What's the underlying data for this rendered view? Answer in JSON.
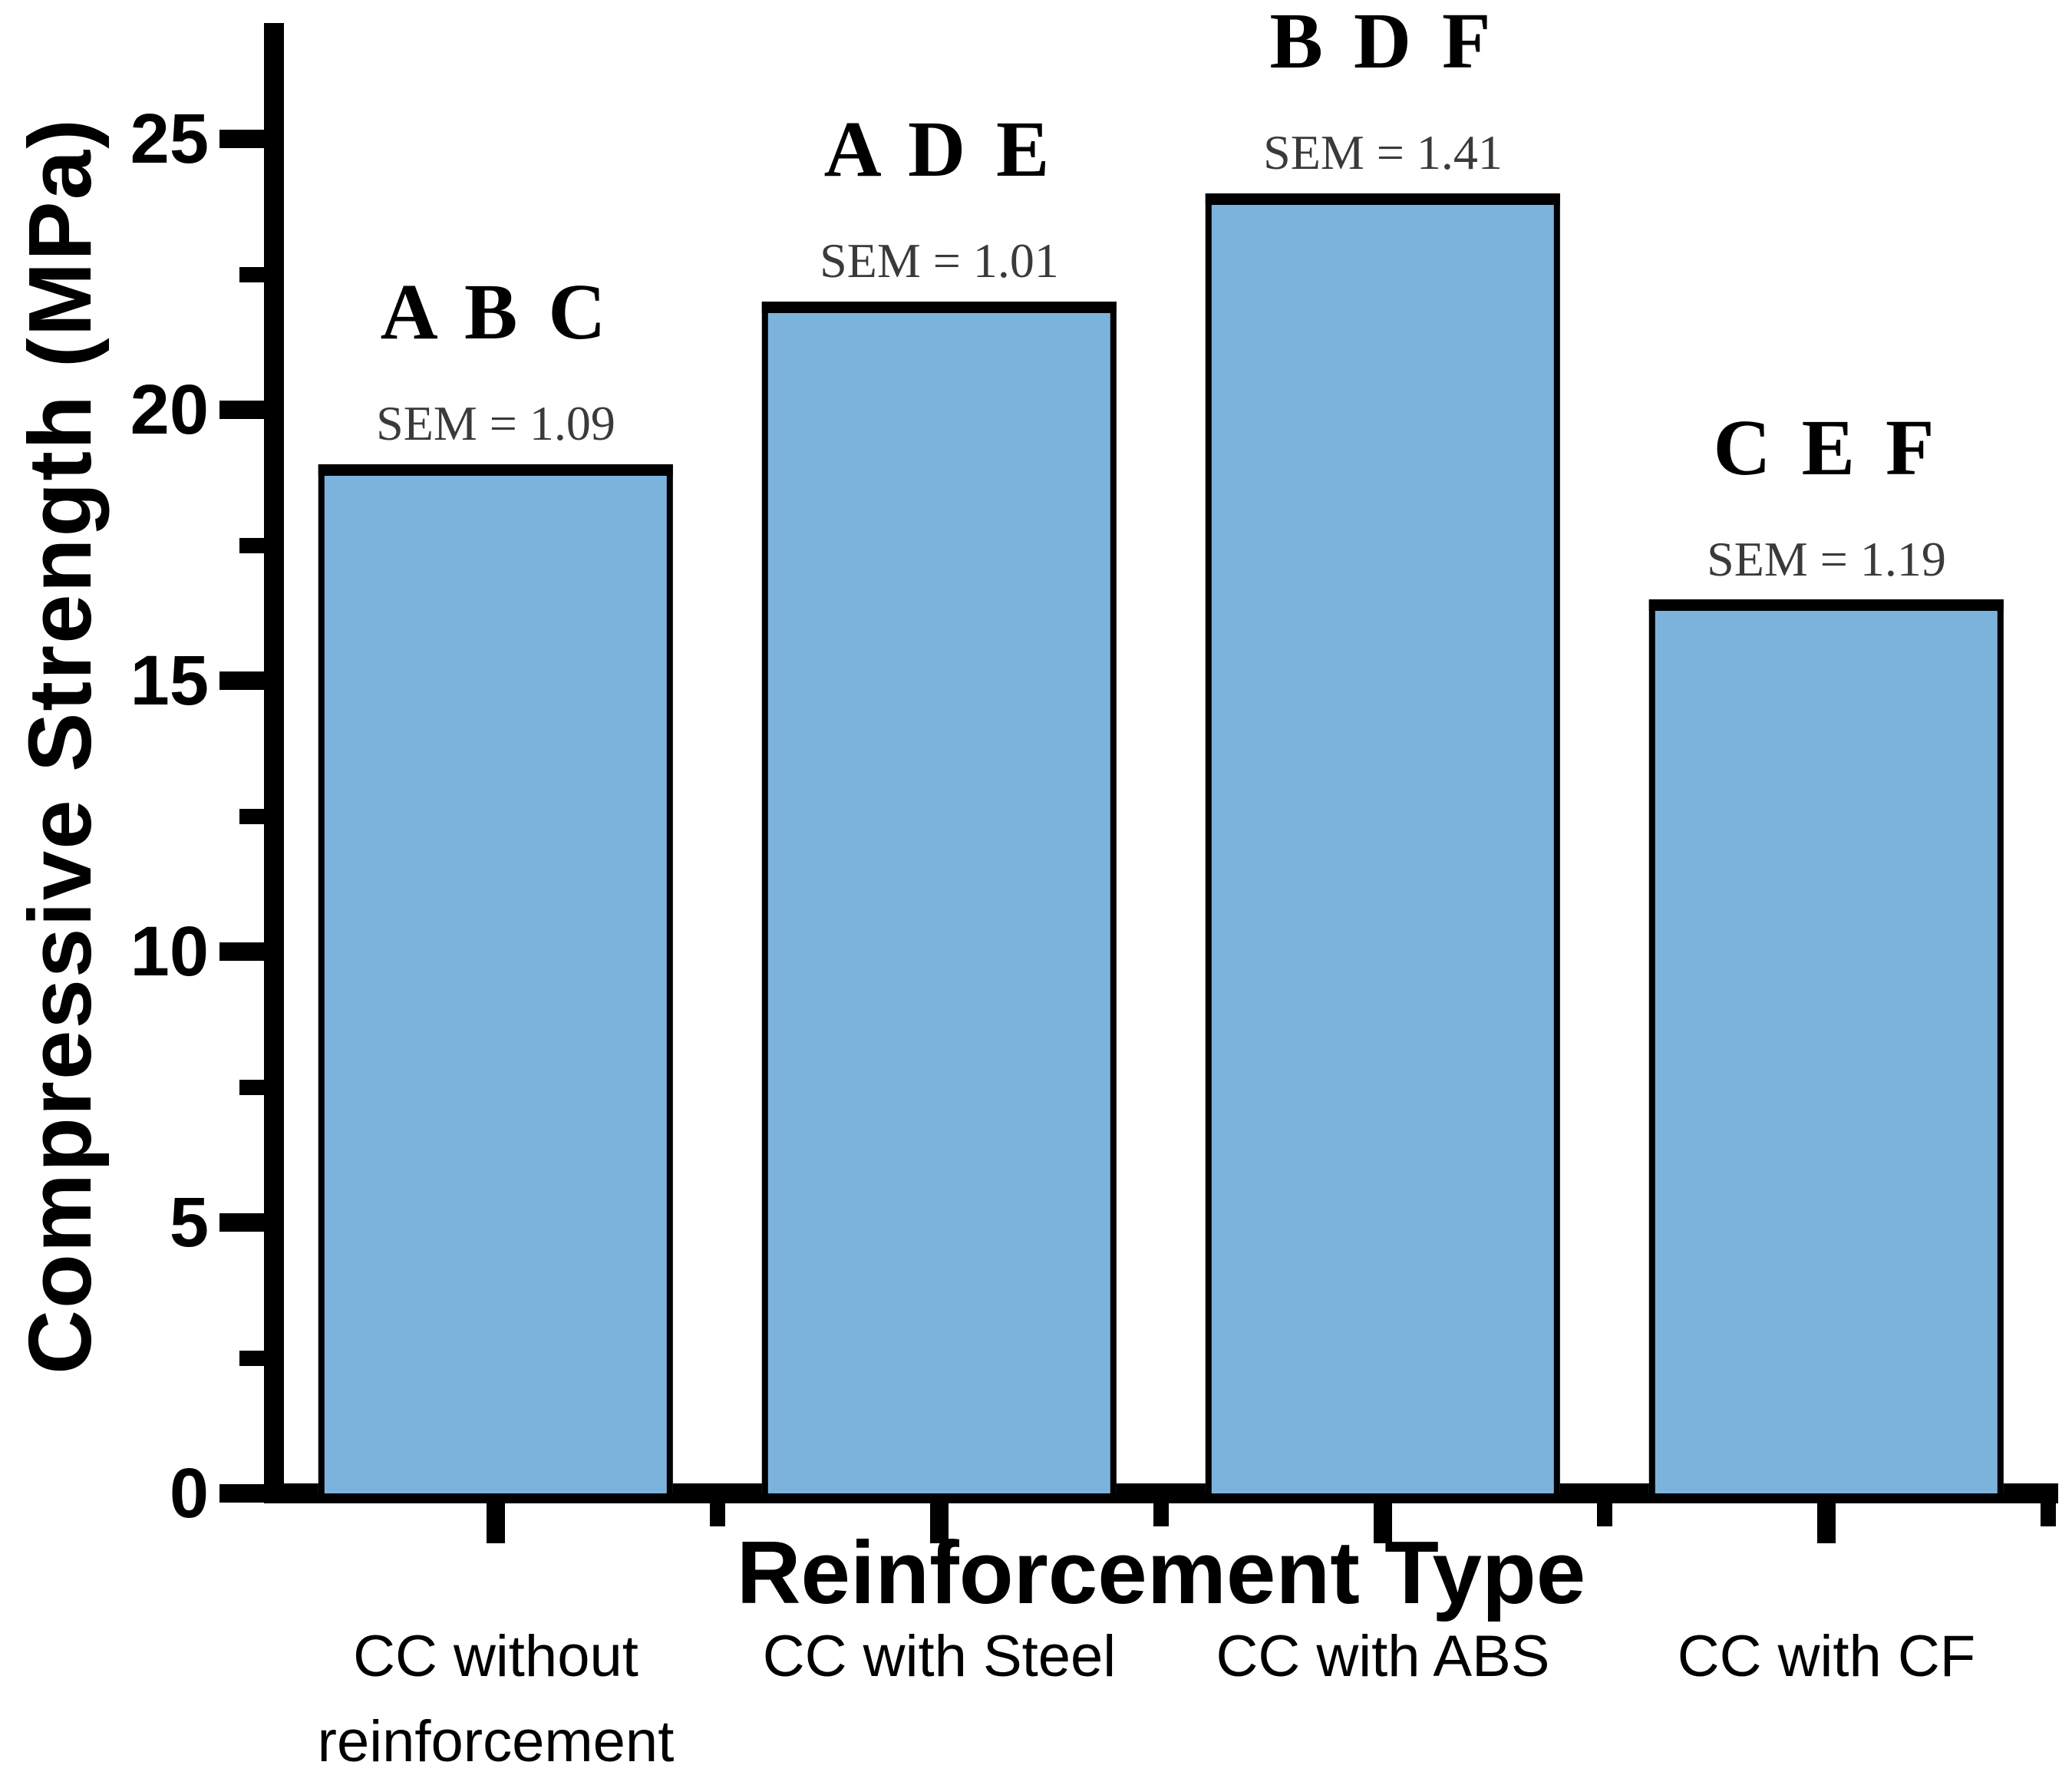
{
  "figure": {
    "background_color": "#ffffff",
    "axis_color": "#000000"
  },
  "chart_data": {
    "type": "bar",
    "title": "",
    "xlabel": "Reinforcement Type",
    "ylabel": "Compressive Strength (MPa)",
    "categories": [
      "CC without\nreinforcement",
      "CC with Steel",
      "CC with ABS",
      "CC with CF"
    ],
    "values": [
      19,
      22,
      24,
      16.5
    ],
    "groups": [
      {
        "letters": "A B C",
        "sem": "SEM = 1.09"
      },
      {
        "letters": "A D E",
        "sem": "SEM = 1.01"
      },
      {
        "letters": "B D F",
        "sem": "SEM = 1.41"
      },
      {
        "letters": "C E F",
        "sem": "SEM = 1.19"
      }
    ],
    "ylim": [
      0,
      27
    ],
    "ytick_labels": [
      "0",
      "5",
      "10",
      "15",
      "20",
      "25"
    ],
    "yticks_major": [
      0,
      5,
      10,
      15,
      20,
      25
    ],
    "yticks_minor": [
      2.5,
      7.5,
      12.5,
      17.5,
      22.5
    ],
    "grid": false,
    "legend": null,
    "bar_color": "#7CB3DD",
    "bar_edge_color": "#000000",
    "sem_text_color": "#3A3A3A",
    "letters_text_color": "#000000"
  }
}
